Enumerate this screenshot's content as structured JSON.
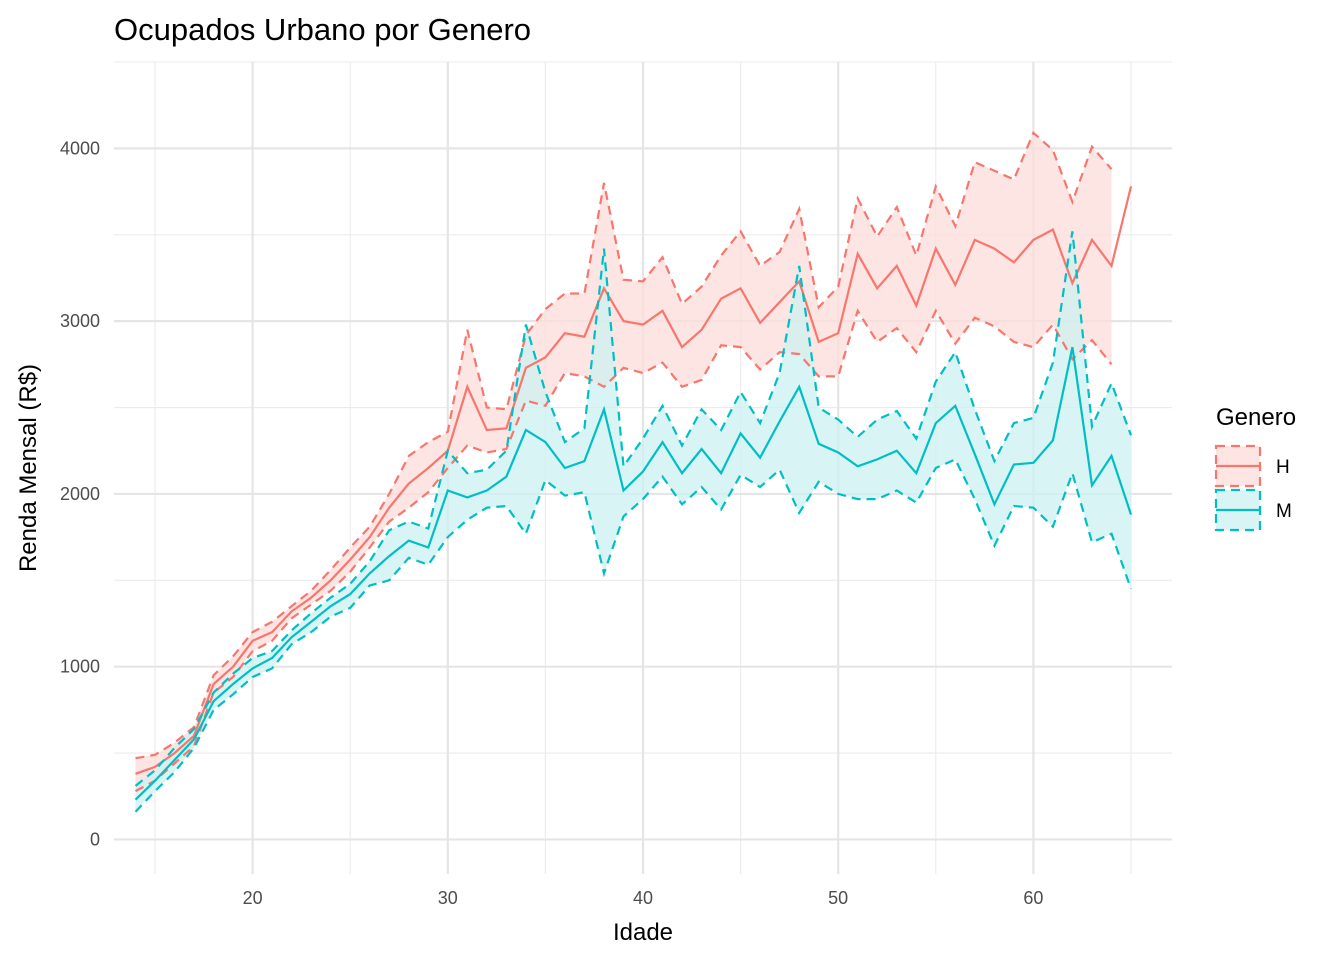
{
  "chart_data": {
    "type": "line",
    "title": "Ocupados Urbano por Genero",
    "xlabel": "Idade",
    "ylabel": "Renda Mensal (R$)",
    "xlim": [
      12.9,
      67.1
    ],
    "ylim": [
      -200,
      4500
    ],
    "x_ticks": [
      20,
      30,
      40,
      50,
      60
    ],
    "y_ticks": [
      0,
      1000,
      2000,
      3000,
      4000
    ],
    "grid": true,
    "legend": {
      "title": "Genero",
      "position": "right"
    },
    "series": [
      {
        "name": "H",
        "color": "#F8766D",
        "fill": "#FCDCDA",
        "x": [
          14,
          15,
          16,
          17,
          18,
          19,
          20,
          21,
          22,
          23,
          24,
          25,
          26,
          27,
          28,
          29,
          30,
          31,
          32,
          33,
          34,
          35,
          36,
          37,
          38,
          39,
          40,
          41,
          42,
          43,
          44,
          45,
          46,
          47,
          48,
          49,
          50,
          51,
          52,
          53,
          54,
          55,
          56,
          57,
          58,
          59,
          60,
          61,
          62,
          63,
          64,
          65
        ],
        "mean": [
          380,
          420,
          500,
          600,
          900,
          1000,
          1150,
          1200,
          1320,
          1400,
          1500,
          1620,
          1750,
          1920,
          2060,
          2150,
          2250,
          2620,
          2370,
          2380,
          2730,
          2790,
          2930,
          2910,
          3190,
          3000,
          2980,
          3060,
          2850,
          2950,
          3130,
          3190,
          2990,
          3110,
          3230,
          2880,
          2930,
          3390,
          3190,
          3320,
          3090,
          3420,
          3210,
          3470,
          3420,
          3340,
          3470,
          3530,
          3220,
          3470,
          3320,
          3780
        ],
        "upper": [
          470,
          490,
          560,
          650,
          950,
          1060,
          1200,
          1260,
          1350,
          1440,
          1560,
          1690,
          1810,
          2000,
          2220,
          2300,
          2360,
          2950,
          2500,
          2490,
          2920,
          3070,
          3160,
          3160,
          3800,
          3240,
          3230,
          3370,
          3100,
          3200,
          3380,
          3520,
          3320,
          3400,
          3650,
          3080,
          3200,
          3710,
          3490,
          3660,
          3380,
          3780,
          3550,
          3920,
          3870,
          3820,
          4090,
          3990,
          3690,
          4010,
          3880,
          null
        ],
        "lower": [
          280,
          340,
          440,
          540,
          850,
          940,
          1090,
          1150,
          1280,
          1360,
          1440,
          1550,
          1690,
          1840,
          1920,
          2010,
          2150,
          2280,
          2240,
          2260,
          2540,
          2510,
          2700,
          2680,
          2620,
          2730,
          2700,
          2760,
          2620,
          2660,
          2860,
          2850,
          2720,
          2820,
          2810,
          2680,
          2680,
          3060,
          2880,
          2960,
          2820,
          3060,
          2870,
          3020,
          2970,
          2880,
          2850,
          2980,
          2780,
          2890,
          2750,
          null
        ]
      },
      {
        "name": "M",
        "color": "#00BFC4",
        "fill": "#CCF0F0",
        "x": [
          14,
          15,
          16,
          17,
          18,
          19,
          20,
          21,
          22,
          23,
          24,
          25,
          26,
          27,
          28,
          29,
          30,
          31,
          32,
          33,
          34,
          35,
          36,
          37,
          38,
          39,
          40,
          41,
          42,
          43,
          44,
          45,
          46,
          47,
          48,
          49,
          50,
          51,
          52,
          53,
          54,
          55,
          56,
          57,
          58,
          59,
          60,
          61,
          62,
          63,
          64,
          65
        ],
        "mean": [
          230,
          340,
          460,
          580,
          800,
          900,
          990,
          1050,
          1170,
          1260,
          1350,
          1420,
          1540,
          1640,
          1730,
          1690,
          2020,
          1980,
          2020,
          2100,
          2370,
          2300,
          2150,
          2190,
          2490,
          2020,
          2130,
          2300,
          2120,
          2260,
          2120,
          2350,
          2210,
          2420,
          2620,
          2290,
          2240,
          2160,
          2200,
          2250,
          2120,
          2410,
          2510,
          2230,
          1940,
          2170,
          2180,
          2310,
          2850,
          2050,
          2220,
          1880
        ],
        "upper": [
          310,
          400,
          530,
          640,
          850,
          960,
          1050,
          1090,
          1210,
          1310,
          1400,
          1480,
          1610,
          1790,
          1840,
          1800,
          2250,
          2120,
          2140,
          2250,
          2980,
          2590,
          2300,
          2380,
          3420,
          2160,
          2320,
          2510,
          2280,
          2490,
          2370,
          2590,
          2410,
          2700,
          3320,
          2500,
          2430,
          2330,
          2430,
          2480,
          2320,
          2650,
          2820,
          2490,
          2190,
          2410,
          2440,
          2760,
          3520,
          2390,
          2640,
          2340
        ],
        "lower": [
          160,
          280,
          390,
          530,
          750,
          840,
          940,
          990,
          1130,
          1200,
          1290,
          1340,
          1470,
          1500,
          1630,
          1590,
          1750,
          1850,
          1920,
          1930,
          1770,
          2080,
          1990,
          2010,
          1540,
          1870,
          1970,
          2100,
          1940,
          2040,
          1910,
          2110,
          2040,
          2140,
          1890,
          2070,
          2000,
          1970,
          1970,
          2020,
          1950,
          2150,
          2200,
          1970,
          1700,
          1930,
          1920,
          1810,
          2120,
          1720,
          1770,
          1450
        ]
      }
    ]
  }
}
